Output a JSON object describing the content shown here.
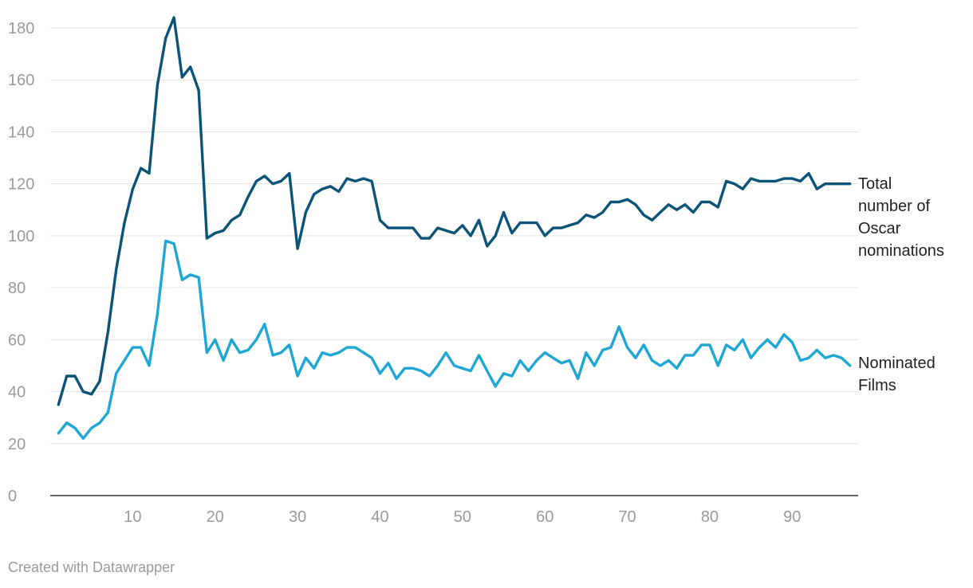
{
  "chart_data": {
    "type": "line",
    "xlim": [
      0,
      98
    ],
    "ylim": [
      0,
      180
    ],
    "x_ticks": [
      10,
      20,
      30,
      40,
      50,
      60,
      70,
      80,
      90
    ],
    "y_ticks": [
      0,
      20,
      40,
      60,
      80,
      100,
      120,
      140,
      160,
      180
    ],
    "x": [
      1,
      2,
      3,
      4,
      5,
      6,
      7,
      8,
      9,
      10,
      11,
      12,
      13,
      14,
      15,
      16,
      17,
      18,
      19,
      20,
      21,
      22,
      23,
      24,
      25,
      26,
      27,
      28,
      29,
      30,
      31,
      32,
      33,
      34,
      35,
      36,
      37,
      38,
      39,
      40,
      41,
      42,
      43,
      44,
      45,
      46,
      47,
      48,
      49,
      50,
      51,
      52,
      53,
      54,
      55,
      56,
      57,
      58,
      59,
      60,
      61,
      62,
      63,
      64,
      65,
      66,
      67,
      68,
      69,
      70,
      71,
      72,
      73,
      74,
      75,
      76,
      77,
      78,
      79,
      80,
      81,
      82,
      83,
      84,
      85,
      86,
      87,
      88,
      89,
      90,
      91,
      92,
      93,
      94,
      95,
      96,
      97
    ],
    "series": [
      {
        "name": "Total number of Oscar nominations",
        "color": "#0b5478",
        "values": [
          35,
          46,
          46,
          40,
          39,
          44,
          63,
          87,
          105,
          118,
          126,
          124,
          158,
          176,
          184,
          161,
          165,
          156,
          99,
          101,
          102,
          106,
          108,
          115,
          121,
          123,
          120,
          121,
          124,
          95,
          109,
          116,
          118,
          119,
          117,
          122,
          121,
          122,
          121,
          106,
          103,
          103,
          103,
          103,
          99,
          99,
          103,
          102,
          101,
          104,
          100,
          106,
          96,
          100,
          109,
          101,
          105,
          105,
          105,
          100,
          103,
          103,
          104,
          105,
          108,
          107,
          109,
          113,
          113,
          114,
          112,
          108,
          106,
          109,
          112,
          110,
          112,
          109,
          113,
          113,
          111,
          121,
          120,
          118,
          122,
          121,
          121,
          121,
          122,
          122,
          121,
          124,
          118,
          120,
          120,
          120,
          120
        ]
      },
      {
        "name": "Nominated Films",
        "color": "#1ea6d4",
        "values": [
          24,
          28,
          26,
          22,
          26,
          28,
          32,
          47,
          52,
          57,
          57,
          50,
          70,
          98,
          97,
          83,
          85,
          84,
          55,
          60,
          52,
          60,
          55,
          56,
          60,
          66,
          54,
          55,
          58,
          46,
          53,
          49,
          55,
          54,
          55,
          57,
          57,
          55,
          53,
          47,
          51,
          45,
          49,
          49,
          48,
          46,
          50,
          55,
          50,
          49,
          48,
          54,
          48,
          42,
          47,
          46,
          52,
          48,
          52,
          55,
          53,
          51,
          52,
          45,
          55,
          50,
          56,
          57,
          65,
          57,
          53,
          58,
          52,
          50,
          52,
          49,
          54,
          54,
          58,
          58,
          50,
          58,
          56,
          60,
          53,
          57,
          60,
          57,
          62,
          59,
          52,
          53,
          56,
          53,
          54,
          53,
          50
        ]
      }
    ],
    "end_labels": [
      "Total\nnumber of\nOscar\nnominations",
      "Nominated\nFilms"
    ]
  },
  "footer": {
    "credit": "Created with Datawrapper"
  }
}
